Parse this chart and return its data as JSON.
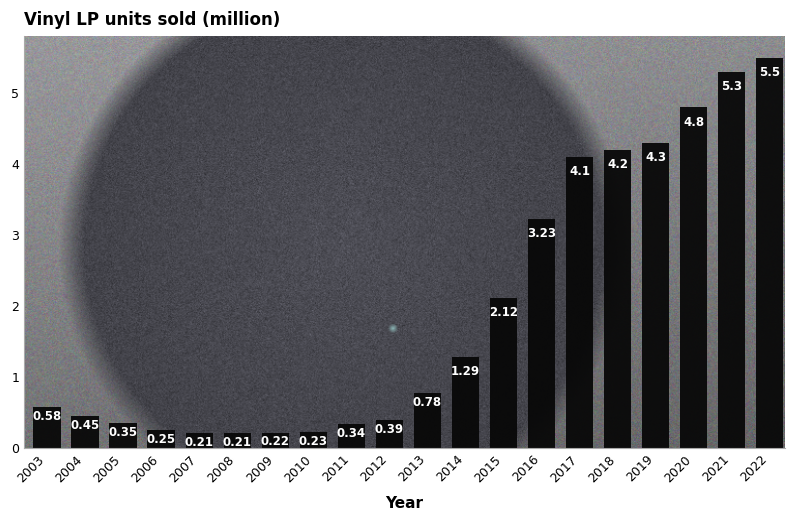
{
  "years": [
    "2003",
    "2004",
    "2005",
    "2006",
    "2007",
    "2008",
    "2009",
    "2010",
    "2011",
    "2012",
    "2013",
    "2014",
    "2015",
    "2016",
    "2017",
    "2018",
    "2019",
    "2020",
    "2021",
    "2022"
  ],
  "values": [
    0.58,
    0.45,
    0.35,
    0.25,
    0.21,
    0.21,
    0.22,
    0.23,
    0.34,
    0.39,
    0.78,
    1.29,
    2.12,
    3.23,
    4.1,
    4.2,
    4.3,
    4.8,
    5.3,
    5.5
  ],
  "bar_color": "#080808",
  "label_color": "#ffffff",
  "title": "Vinyl LP units sold (million)",
  "xlabel": "Year",
  "ylim": [
    0,
    5.8
  ],
  "bg_color": "#ffffff",
  "title_fontsize": 12,
  "label_fontsize": 8.5,
  "axis_label_fontsize": 11,
  "vinyl_color": "#525260",
  "vinyl_noise_color": "#6a6a78",
  "bg_photo_left": "#909090",
  "bg_photo_right": "#707080",
  "center_dot_color": "#7ab8b8",
  "plot_bg_top_left": "#8a8a8a",
  "plot_bg_bottom_right": "#555560"
}
